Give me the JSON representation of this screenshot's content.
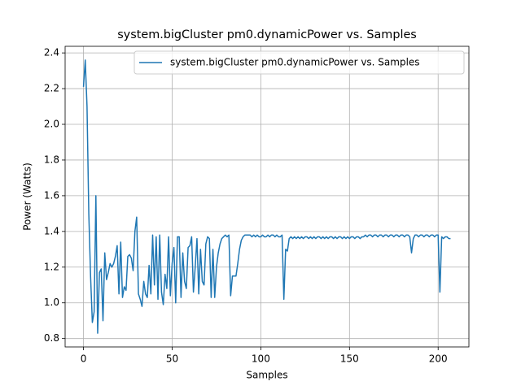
{
  "chart_data": {
    "type": "line",
    "title": "system.bigCluster pm0.dynamicPower vs. Samples",
    "xlabel": "Samples",
    "ylabel": "Power (Watts)",
    "series": [
      {
        "name": "system.bigCluster pm0.dynamicPower vs. Samples",
        "color": "#1f77b4",
        "values": [
          2.21,
          2.36,
          2.1,
          1.5,
          1.15,
          0.89,
          0.95,
          1.6,
          0.83,
          1.17,
          1.19,
          0.9,
          1.28,
          1.13,
          1.17,
          1.22,
          1.2,
          1.22,
          1.26,
          1.32,
          1.05,
          1.34,
          1.03,
          1.09,
          1.07,
          1.26,
          1.27,
          1.25,
          1.18,
          1.4,
          1.48,
          1.05,
          1.02,
          0.98,
          1.12,
          1.05,
          1.03,
          1.21,
          1.05,
          1.38,
          1.1,
          1.37,
          1.02,
          1.38,
          1.06,
          0.99,
          1.16,
          1.08,
          1.37,
          1.04,
          1.22,
          1.31,
          1.0,
          1.37,
          1.37,
          1.03,
          1.28,
          1.12,
          1.08,
          1.31,
          1.32,
          1.37,
          1.06,
          1.2,
          1.36,
          1.05,
          1.3,
          1.12,
          1.1,
          1.33,
          1.37,
          1.36,
          1.03,
          1.3,
          1.03,
          1.2,
          1.28,
          1.33,
          1.36,
          1.37,
          1.38,
          1.37,
          1.38,
          1.04,
          1.15,
          1.15,
          1.15,
          1.22,
          1.3,
          1.35,
          1.37,
          1.38,
          1.38,
          1.38,
          1.38,
          1.37,
          1.38,
          1.37,
          1.38,
          1.37,
          1.37,
          1.38,
          1.37,
          1.37,
          1.38,
          1.37,
          1.38,
          1.38,
          1.37,
          1.38,
          1.37,
          1.37,
          1.38,
          1.02,
          1.3,
          1.29,
          1.36,
          1.37,
          1.36,
          1.37,
          1.36,
          1.37,
          1.36,
          1.37,
          1.36,
          1.37,
          1.37,
          1.36,
          1.37,
          1.36,
          1.37,
          1.36,
          1.37,
          1.37,
          1.36,
          1.37,
          1.36,
          1.37,
          1.36,
          1.37,
          1.37,
          1.36,
          1.37,
          1.36,
          1.37,
          1.37,
          1.36,
          1.37,
          1.36,
          1.37,
          1.36,
          1.37,
          1.37,
          1.36,
          1.37,
          1.37,
          1.36,
          1.37,
          1.37,
          1.38,
          1.37,
          1.38,
          1.38,
          1.37,
          1.38,
          1.38,
          1.37,
          1.38,
          1.38,
          1.37,
          1.38,
          1.38,
          1.37,
          1.38,
          1.38,
          1.37,
          1.38,
          1.38,
          1.37,
          1.38,
          1.38,
          1.37,
          1.38,
          1.38,
          1.37,
          1.28,
          1.36,
          1.38,
          1.38,
          1.37,
          1.38,
          1.38,
          1.37,
          1.38,
          1.38,
          1.37,
          1.38,
          1.38,
          1.37,
          1.38,
          1.38,
          1.06,
          1.37,
          1.36,
          1.37,
          1.37,
          1.36,
          1.36
        ]
      }
    ],
    "xlim": [
      -10.35,
      217.35
    ],
    "xticks": [
      0,
      50,
      100,
      150,
      200
    ],
    "ylim": [
      0.753,
      2.437
    ],
    "yticks": [
      0.8,
      {
        "value": 1,
        "label": "1.0"
      },
      1.2,
      1.4,
      1.6,
      1.8,
      {
        "value": 2,
        "label": "2.0"
      },
      2.2,
      2.4
    ],
    "grid": true,
    "legend": "upper-right"
  }
}
